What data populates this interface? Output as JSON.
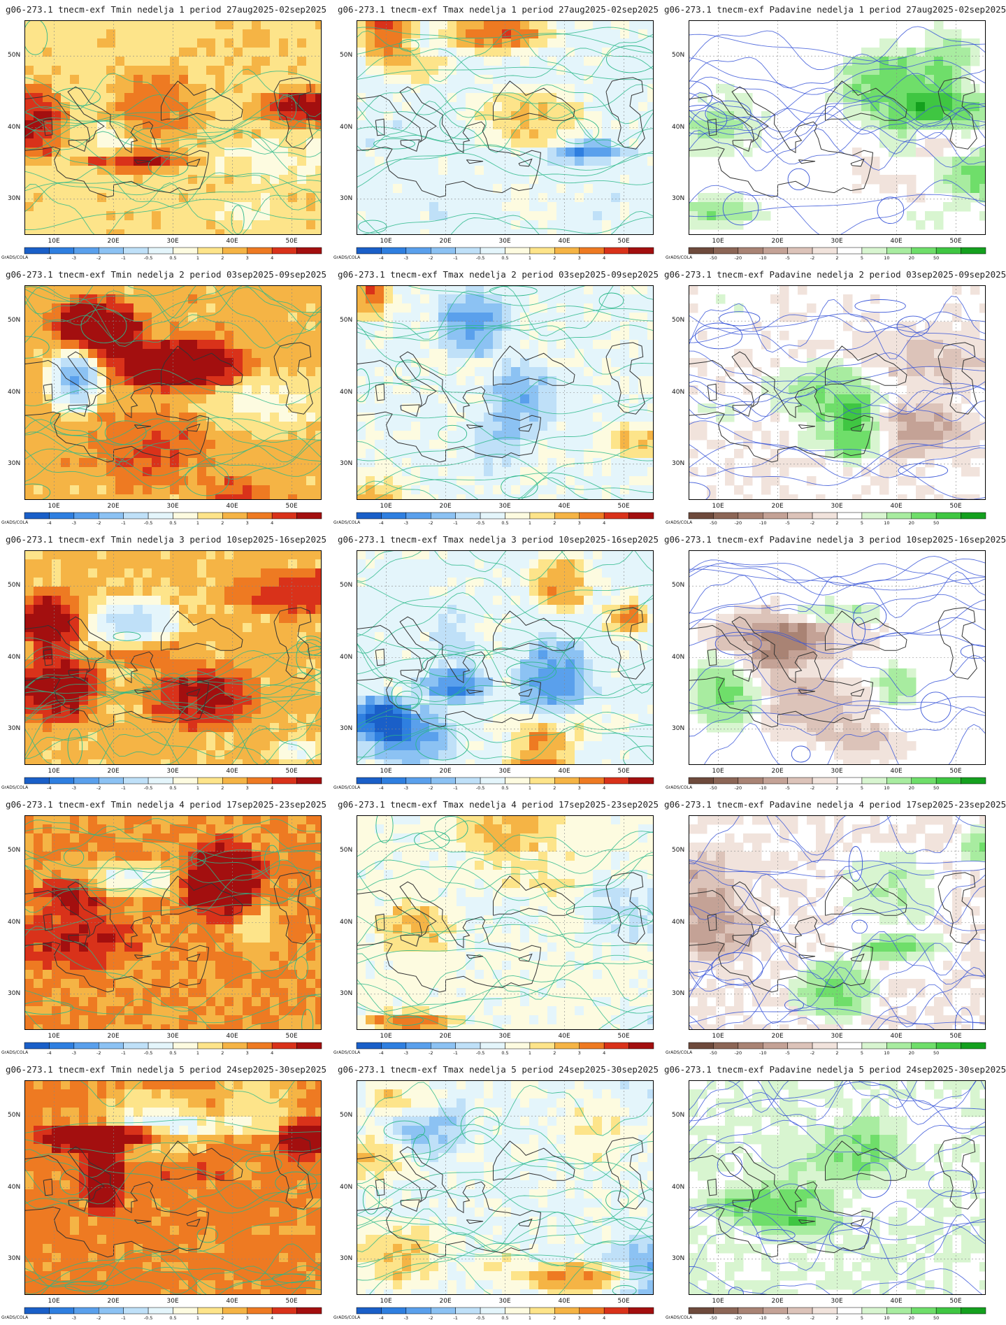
{
  "brand": "GrADS/COLA",
  "axes": {
    "lat_labels": [
      "50N",
      "40N",
      "30N"
    ],
    "lon_labels": [
      "10E",
      "20E",
      "30E",
      "40E",
      "50E"
    ]
  },
  "colorbars": {
    "temperature": {
      "ticks": [
        "-4",
        "-3",
        "-2",
        "-1",
        "-0.5",
        "0.5",
        "1",
        "2",
        "3",
        "4"
      ],
      "colors": [
        "#1a5fc8",
        "#2f7fe0",
        "#5aa0ec",
        "#8cc2f3",
        "#bfe0f8",
        "#e4f5fb",
        "#fdfbe0",
        "#fde48a",
        "#f5b445",
        "#ee7a22",
        "#d9321a",
        "#a30f0f"
      ]
    },
    "precipitation": {
      "ticks": [
        "-50",
        "-20",
        "-10",
        "-5",
        "-2",
        "2",
        "5",
        "10",
        "20",
        "50"
      ],
      "colors": [
        "#6e4a3c",
        "#8c6656",
        "#a98374",
        "#c4a296",
        "#dcc3b9",
        "#f1e3dc",
        "#ffffff",
        "#d8f5d0",
        "#a8eca0",
        "#6fde6a",
        "#3fc642",
        "#14a01e"
      ]
    }
  },
  "panels": [
    {
      "title": "g06-273.1 tnecm-exf Tmin nedelja 1 period 27aug2025-02sep2025",
      "type": "temperature"
    },
    {
      "title": "g06-273.1 tnecm-exf Tmax nedelja 1 period 27aug2025-02sep2025",
      "type": "temperature"
    },
    {
      "title": "g06-273.1 tnecm-exf Padavine nedelja 1 period 27aug2025-02sep2025",
      "type": "precipitation"
    },
    {
      "title": "g06-273.1 tnecm-exf Tmin nedelja 2 period 03sep2025-09sep2025",
      "type": "temperature"
    },
    {
      "title": "g06-273.1 tnecm-exf Tmax nedelja 2 period 03sep2025-09sep2025",
      "type": "temperature"
    },
    {
      "title": "g06-273.1 tnecm-exf Padavine nedelja 2 period 03sep2025-09sep2025",
      "type": "precipitation"
    },
    {
      "title": "g06-273.1 tnecm-exf Tmin nedelja 3 period 10sep2025-16sep2025",
      "type": "temperature"
    },
    {
      "title": "g06-273.1 tnecm-exf Tmax nedelja 3 period 10sep2025-16sep2025",
      "type": "temperature"
    },
    {
      "title": "g06-273.1 tnecm-exf Padavine nedelja 3 period 10sep2025-16sep2025",
      "type": "precipitation"
    },
    {
      "title": "g06-273.1 tnecm-exf Tmin nedelja 4 period 17sep2025-23sep2025",
      "type": "temperature"
    },
    {
      "title": "g06-273.1 tnecm-exf Tmax nedelja 4 period 17sep2025-23sep2025",
      "type": "temperature"
    },
    {
      "title": "g06-273.1 tnecm-exf Padavine nedelja 4 period 17sep2025-23sep2025",
      "type": "precipitation"
    },
    {
      "title": "g06-273.1 tnecm-exf Tmin nedelja 5 period 24sep2025-30sep2025",
      "type": "temperature"
    },
    {
      "title": "g06-273.1 tnecm-exf Tmax nedelja 5 period 24sep2025-30sep2025",
      "type": "temperature"
    },
    {
      "title": "g06-273.1 tnecm-exf Padavine nedelja 5 period 24sep2025-30sep2025",
      "type": "precipitation"
    }
  ]
}
